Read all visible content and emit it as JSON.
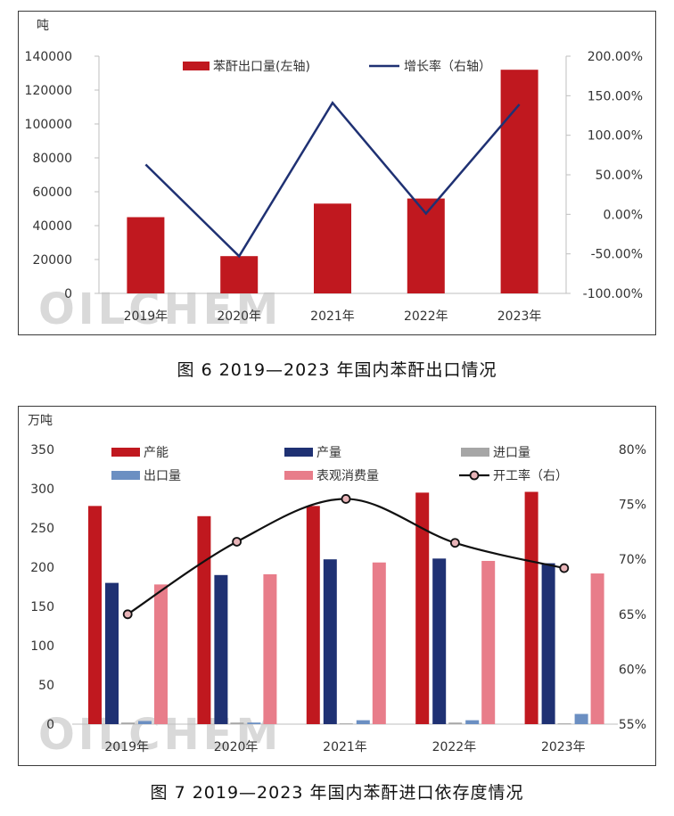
{
  "captions": {
    "fig6": "图 6  2019—2023 年国内苯酐出口情况",
    "fig7": "图 7  2019—2023 年国内苯酐进口依存度情况"
  },
  "watermark": "OILCHEM",
  "colors": {
    "bar_red": "#c0181f",
    "line_navy": "#1f3173",
    "bar_gray": "#a6a6a6",
    "bar_steel": "#6b8fc2",
    "bar_pink": "#e87d8a",
    "rate_line": "#111111",
    "rate_marker": "#e8b4b8"
  },
  "chart_data": [
    {
      "type": "bar",
      "unit_left": "吨",
      "categories": [
        "2019年",
        "2020年",
        "2021年",
        "2022年",
        "2023年"
      ],
      "y_left": {
        "ticks": [
          "0",
          "20000",
          "40000",
          "60000",
          "80000",
          "100000",
          "120000",
          "140000"
        ],
        "lim": [
          0,
          140000
        ]
      },
      "y_right": {
        "ticks": [
          "-100.00%",
          "-50.00%",
          "0.00%",
          "50.00%",
          "100.00%",
          "150.00%",
          "200.00%"
        ],
        "lim": [
          -100,
          200
        ]
      },
      "series": [
        {
          "name": "苯酐出口量(左轴)",
          "type": "bar",
          "axis": "left",
          "values": [
            45000,
            22000,
            53000,
            56000,
            132000
          ]
        },
        {
          "name": "增长率（右轴）",
          "type": "line",
          "axis": "right",
          "values": [
            63,
            -53,
            141,
            1,
            139
          ]
        }
      ],
      "legend_position": "top"
    },
    {
      "type": "bar",
      "unit_left": "万吨",
      "categories": [
        "2019年",
        "2020年",
        "2021年",
        "2022年",
        "2023年"
      ],
      "y_left": {
        "ticks": [
          "0",
          "50",
          "100",
          "150",
          "200",
          "250",
          "300",
          "350"
        ],
        "lim": [
          0,
          350
        ]
      },
      "y_right": {
        "ticks": [
          "55%",
          "60%",
          "65%",
          "70%",
          "75%",
          "80%"
        ],
        "lim": [
          55,
          80
        ]
      },
      "series": [
        {
          "name": "产能",
          "type": "bar",
          "axis": "left",
          "values": [
            278,
            265,
            278,
            295,
            296
          ]
        },
        {
          "name": "产量",
          "type": "bar",
          "axis": "left",
          "values": [
            180,
            190,
            210,
            211,
            205
          ]
        },
        {
          "name": "进口量",
          "type": "bar",
          "axis": "left",
          "values": [
            2,
            2,
            1,
            2,
            1
          ]
        },
        {
          "name": "出口量",
          "type": "bar",
          "axis": "left",
          "values": [
            4,
            2,
            5,
            5,
            13
          ]
        },
        {
          "name": "表观消费量",
          "type": "bar",
          "axis": "left",
          "values": [
            178,
            191,
            206,
            208,
            192
          ]
        },
        {
          "name": "开工率（右）",
          "type": "line",
          "axis": "right",
          "values": [
            65,
            71.6,
            75.5,
            71.5,
            69.2
          ]
        }
      ],
      "legend_position": "top"
    }
  ]
}
